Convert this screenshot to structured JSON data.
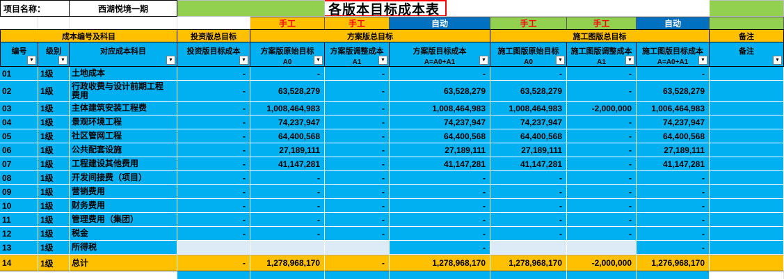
{
  "header": {
    "project_label": "项目名称：",
    "project_name": "西湖悦境一期",
    "title": "各版本目标成本表"
  },
  "mode_row": {
    "plan_a0_mode": "手工",
    "plan_a1_mode": "手工",
    "plan_total_mode": "自动",
    "construction_a0_mode": "手工",
    "construction_a1_mode": "手工",
    "construction_total_mode": "自动"
  },
  "section_headers": {
    "cost_code": "成本编号及科目",
    "investment": "投资版总目标",
    "plan": "方案版总目标",
    "construction": "施工图版总目标",
    "note": "备注"
  },
  "columns": [
    {
      "title": "编号"
    },
    {
      "title": "级别"
    },
    {
      "title": "对应成本科目"
    },
    {
      "title": "投资版目标成本"
    },
    {
      "title": "方案版原始目标",
      "sub": "A0"
    },
    {
      "title": "方案版调整成本",
      "sub": "A1"
    },
    {
      "title": "方案版目标成本",
      "sub": "A=A0+A1"
    },
    {
      "title": "施工图版原始目标",
      "sub": "A0"
    },
    {
      "title": "施工图版调整成本",
      "sub": "A1"
    },
    {
      "title": "施工图版目标成本",
      "sub": "A=A0+A1"
    },
    {
      "title": "备注"
    }
  ],
  "filter_icon": "▼",
  "rows": [
    {
      "no": "01",
      "level": "1级",
      "subject": "土地成本",
      "values": [
        "-",
        "-",
        "-",
        "-",
        "-",
        "-",
        "-"
      ],
      "note": ""
    },
    {
      "no": "02",
      "level": "1级",
      "subject": "行政收费与设计前期工程费用",
      "values": [
        "-",
        "63,528,279",
        "-",
        "63,528,279",
        "63,528,279",
        "-",
        "63,528,279"
      ],
      "note": ""
    },
    {
      "no": "03",
      "level": "1级",
      "subject": "主体建筑安装工程费",
      "values": [
        "-",
        "1,008,464,983",
        "-",
        "1,008,464,983",
        "1,008,464,983",
        "-2,000,000",
        "1,006,464,983"
      ],
      "note": ""
    },
    {
      "no": "04",
      "level": "1级",
      "subject": "景观环境工程",
      "values": [
        "-",
        "74,237,947",
        "-",
        "74,237,947",
        "74,237,947",
        "-",
        "74,237,947"
      ],
      "note": ""
    },
    {
      "no": "05",
      "level": "1级",
      "subject": "社区管网工程",
      "values": [
        "-",
        "64,400,568",
        "-",
        "64,400,568",
        "64,400,568",
        "-",
        "64,400,568"
      ],
      "note": ""
    },
    {
      "no": "06",
      "level": "1级",
      "subject": "公共配套设施",
      "values": [
        "-",
        "27,189,111",
        "-",
        "27,189,111",
        "27,189,111",
        "-",
        "27,189,111"
      ],
      "note": ""
    },
    {
      "no": "07",
      "level": "1级",
      "subject": "工程建设其他费用",
      "values": [
        "-",
        "41,147,281",
        "-",
        "41,147,281",
        "41,147,281",
        "-",
        "41,147,281"
      ],
      "note": ""
    },
    {
      "no": "08",
      "level": "1级",
      "subject": "开发间接费（项目）",
      "values": [
        "-",
        "-",
        "-",
        "-",
        "-",
        "-",
        "-"
      ],
      "note": ""
    },
    {
      "no": "09",
      "level": "1级",
      "subject": "营销费用",
      "values": [
        "-",
        "-",
        "-",
        "-",
        "-",
        "-",
        "-"
      ],
      "note": ""
    },
    {
      "no": "10",
      "level": "1级",
      "subject": "财务费用",
      "values": [
        "-",
        "-",
        "-",
        "-",
        "-",
        "-",
        "-"
      ],
      "note": ""
    },
    {
      "no": "11",
      "level": "1级",
      "subject": "管理费用（集团）",
      "values": [
        "-",
        "-",
        "-",
        "-",
        "-",
        "-",
        "-"
      ],
      "note": ""
    },
    {
      "no": "12",
      "level": "1级",
      "subject": "税金",
      "values": [
        "-",
        "-",
        "-",
        "-",
        "-",
        "-",
        "-"
      ],
      "note": ""
    },
    {
      "no": "13",
      "level": "1级",
      "subject": "所得税",
      "values": [
        "",
        "",
        "",
        "-",
        "",
        "",
        "-"
      ],
      "hatched": [
        0,
        1,
        2,
        4,
        5
      ],
      "note": ""
    },
    {
      "no": "14",
      "level": "1级",
      "subject": "总计",
      "values": [
        "-",
        "1,278,968,170",
        "-",
        "1,278,968,170",
        "1,278,968,170",
        "-2,000,000",
        "1,276,968,170"
      ],
      "total": true,
      "note": ""
    }
  ],
  "colors": {
    "section_gold": "#FFC000",
    "data_blue": "#00B0F0",
    "auto_blue": "#0070C0",
    "manual_green": "#92D050",
    "manual_red_text": "#FF0000",
    "title_border_red": "#FF0000"
  }
}
